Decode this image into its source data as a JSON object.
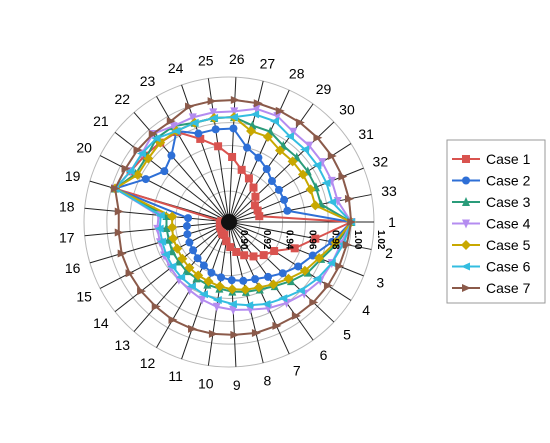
{
  "chart_data": {
    "type": "radar",
    "title": "",
    "categories": [
      "1",
      "2",
      "3",
      "4",
      "5",
      "6",
      "7",
      "8",
      "9",
      "10",
      "11",
      "12",
      "13",
      "14",
      "15",
      "16",
      "17",
      "18",
      "19",
      "20",
      "21",
      "22",
      "23",
      "24",
      "25",
      "26",
      "27",
      "28",
      "29",
      "30",
      "31",
      "32",
      "33"
    ],
    "rlim": [
      0.9,
      1.02
    ],
    "r_ticks": [
      "0.90",
      "0.92",
      "0.94",
      "0.96",
      "0.98",
      "1.00",
      "1.02"
    ],
    "grid": true,
    "legend_position": "right",
    "series": [
      {
        "name": "Case 1",
        "color": "#d9534f",
        "marker": "square",
        "values": [
          1.0,
          0.97,
          0.955,
          0.94,
          0.935,
          0.93,
          0.925,
          0.92,
          0.915,
          0.91,
          0.905,
          0.905,
          0.903,
          0.902,
          0.902,
          0.901,
          0.901,
          0.9,
          0.997,
          0.99,
          0.987,
          0.985,
          0.984,
          0.97,
          0.96,
          0.95,
          0.94,
          0.935,
          0.93,
          0.925,
          0.92,
          0.92,
          0.92
        ]
      },
      {
        "name": "Case 2",
        "color": "#2e6fd6",
        "marker": "circle",
        "values": [
          1.0,
          0.985,
          0.972,
          0.965,
          0.958,
          0.952,
          0.948,
          0.946,
          0.944,
          0.942,
          0.94,
          0.937,
          0.935,
          0.933,
          0.932,
          0.931,
          0.93,
          0.929,
          0.997,
          0.975,
          0.965,
          0.97,
          0.985,
          0.975,
          0.975,
          0.975,
          0.96,
          0.955,
          0.95,
          0.945,
          0.945,
          0.945,
          0.945
        ]
      },
      {
        "name": "Case 3",
        "color": "#2a9c7a",
        "marker": "triangle-up",
        "values": [
          1.0,
          0.99,
          0.98,
          0.975,
          0.968,
          0.962,
          0.958,
          0.956,
          0.954,
          0.952,
          0.951,
          0.95,
          0.95,
          0.949,
          0.949,
          0.948,
          0.948,
          0.948,
          0.997,
          0.985,
          0.985,
          0.99,
          0.99,
          0.985,
          0.985,
          0.985,
          0.98,
          0.98,
          0.975,
          0.975,
          0.975,
          0.975,
          0.975
        ]
      },
      {
        "name": "Case 4",
        "color": "#b48cf0",
        "marker": "triangle-down",
        "values": [
          1.0,
          0.993,
          0.99,
          0.988,
          0.984,
          0.98,
          0.976,
          0.972,
          0.97,
          0.968,
          0.965,
          0.962,
          0.96,
          0.958,
          0.957,
          0.956,
          0.956,
          0.955,
          0.997,
          0.99,
          0.99,
          0.995,
          0.99,
          0.99,
          0.99,
          0.99,
          0.995,
          0.995,
          0.99,
          0.99,
          0.99,
          0.99,
          0.99
        ]
      },
      {
        "name": "Case 5",
        "color": "#c8a800",
        "marker": "diamond",
        "values": [
          1.0,
          0.988,
          0.978,
          0.972,
          0.965,
          0.96,
          0.956,
          0.954,
          0.952,
          0.95,
          0.948,
          0.947,
          0.946,
          0.945,
          0.944,
          0.944,
          0.943,
          0.943,
          0.997,
          0.983,
          0.983,
          0.985,
          0.985,
          0.985,
          0.985,
          0.985,
          0.975,
          0.975,
          0.97,
          0.97,
          0.97,
          0.97,
          0.97
        ]
      },
      {
        "name": "Case 6",
        "color": "#33bde0",
        "marker": "triangle-left",
        "values": [
          1.0,
          0.995,
          0.99,
          0.985,
          0.98,
          0.975,
          0.972,
          0.968,
          0.965,
          0.962,
          0.96,
          0.958,
          0.957,
          0.956,
          0.955,
          0.954,
          0.954,
          0.953,
          0.997,
          0.99,
          0.99,
          0.99,
          0.985,
          0.985,
          0.985,
          0.985,
          0.99,
          0.99,
          0.985,
          0.985,
          0.985,
          0.985,
          0.985
        ]
      },
      {
        "name": "Case 7",
        "color": "#8b5a4a",
        "marker": "triangle-right",
        "values": [
          1.0,
          0.998,
          0.997,
          0.996,
          0.995,
          0.994,
          0.993,
          0.993,
          0.992,
          0.992,
          0.992,
          0.992,
          0.991,
          0.991,
          0.991,
          0.991,
          0.99,
          0.99,
          0.997,
          0.995,
          0.995,
          0.995,
          0.995,
          1.0,
          1.0,
          1.0,
          1.0,
          1.0,
          1.0,
          1.0,
          1.0,
          1.0,
          1.0
        ]
      }
    ]
  }
}
